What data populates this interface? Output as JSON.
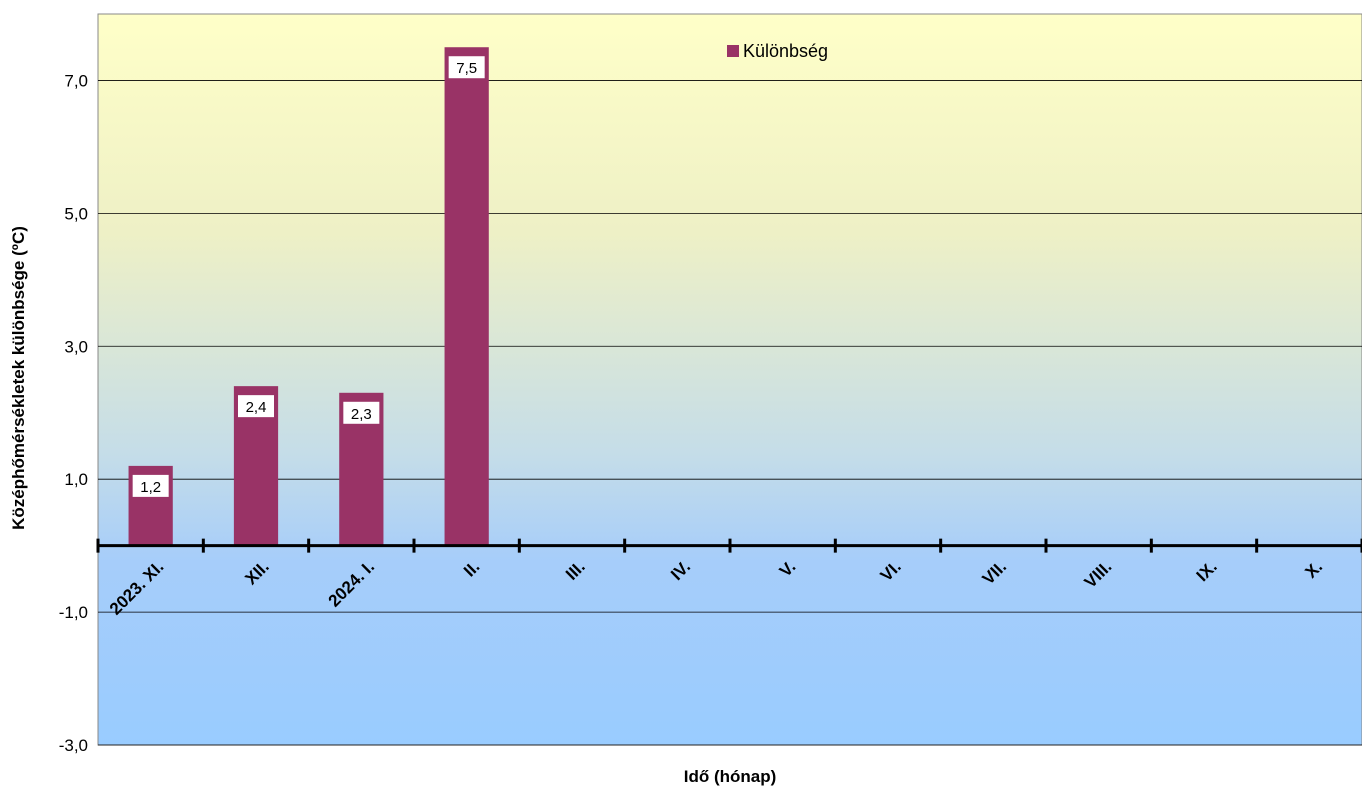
{
  "chart_data": {
    "type": "bar",
    "xlabel": "Idő (hónap)",
    "ylabel": "Középhőmérsékletek különbsége (ºC)",
    "ylim": [
      -3.0,
      8.0
    ],
    "yticks": [
      "-3,0",
      "-1,0",
      "1,0",
      "3,0",
      "5,0",
      "7,0"
    ],
    "ytick_values": [
      -3,
      -1,
      1,
      3,
      5,
      7
    ],
    "categories": [
      "2023. XI.",
      "XII.",
      "2024. I.",
      "II.",
      "III.",
      "IV.",
      "V.",
      "VI.",
      "VII.",
      "VIII.",
      "IX.",
      "X."
    ],
    "series": [
      {
        "name": "Különbség",
        "values": [
          1.2,
          2.4,
          2.3,
          7.5,
          null,
          null,
          null,
          null,
          null,
          null,
          null,
          null
        ],
        "labels": [
          "1,2",
          "2,4",
          "2,3",
          "7,5",
          "",
          "",
          "",
          "",
          "",
          "",
          "",
          ""
        ]
      }
    ],
    "legend_position": "top",
    "grid": true,
    "colors": {
      "bar": "#993366",
      "background_top": "#ffffc8",
      "background_bottom": "#99ccff",
      "grid": "#000000"
    }
  }
}
